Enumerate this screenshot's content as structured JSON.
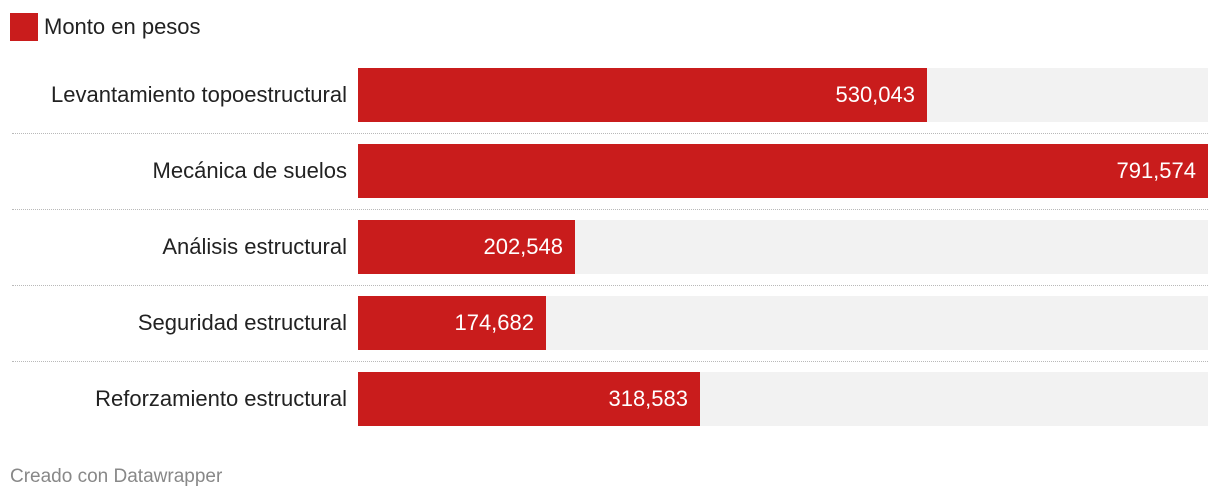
{
  "legend": {
    "label": "Monto en pesos",
    "color": "#c91c1c"
  },
  "footer": {
    "credit": "Creado con Datawrapper"
  },
  "colors": {
    "bar": "#c91c1c",
    "track": "#f2f2f2"
  },
  "chart_data": {
    "type": "bar",
    "orientation": "horizontal",
    "title": "",
    "xlabel": "",
    "ylabel": "",
    "xlim": [
      0,
      791574
    ],
    "series": [
      {
        "name": "Monto en pesos",
        "values": [
          530043,
          791574,
          202548,
          174682,
          318583
        ]
      }
    ],
    "categories": [
      "Levantamiento topoestructural",
      "Mecánica de suelos",
      "Análisis estructural",
      "Seguridad estructural",
      "Reforzamiento estructural"
    ],
    "value_labels": [
      "530,043",
      "791,574",
      "202,548",
      "174,682",
      "318,583"
    ]
  }
}
